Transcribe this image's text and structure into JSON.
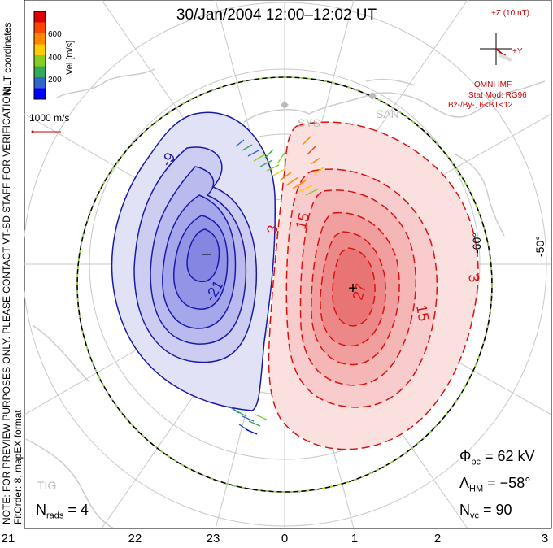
{
  "header": {
    "title": "30/Jan/2004 12:00–12:02 UT"
  },
  "side_text": {
    "line1": "NOTE: FOR PREVIEW PURPOSES ONLY. PLEASE CONTACT VT-SD STAFF FOR VERIFICATION.",
    "line2": "FitOrder: 8, mapEX format"
  },
  "colorbar": {
    "coord_label": "MLT coordinates",
    "vel_label": "Vel [m/s]",
    "ticks": [
      "600",
      "400",
      "200"
    ],
    "colors": [
      "#0000ff",
      "#3366cc",
      "#33aa55",
      "#88cc22",
      "#ffcc00",
      "#ff8800",
      "#ff4400",
      "#dd0000"
    ]
  },
  "scale": {
    "label": "1000 m/s"
  },
  "imf": {
    "axis_label": "+Z (10 nT)",
    "y_label": "+Y",
    "source": "OMNI IMF",
    "model": "Stat Mod: RG96",
    "condition": "Bz-/By-, 6<BT<12"
  },
  "map": {
    "lat_labels": [
      "-60°",
      "-50°"
    ],
    "site_labels": [
      "SYS",
      "SAN",
      "TIG"
    ],
    "contour_labels": {
      "negative": [
        "-9",
        "-21"
      ],
      "positive": [
        "3",
        "15",
        "27",
        "15",
        "3"
      ]
    },
    "min_marker": "–",
    "max_marker": "+"
  },
  "stats": {
    "phi_symbol": "Φ",
    "phi_sub": "pc",
    "phi_value": "= 62 kV",
    "lambda_symbol": "Λ",
    "lambda_sub": "HM",
    "lambda_value": "= −58°",
    "n_symbol": "N",
    "nvc_sub": "vc",
    "nvc_value": "= 90",
    "nrads_sub": "rads",
    "nrads_value": "= 4"
  },
  "x_axis": {
    "ticks": [
      "21",
      "22",
      "23",
      "0",
      "1",
      "2",
      "3"
    ]
  },
  "colors": {
    "negative_line": "#1a1aaa",
    "positive_line": "#dd1111",
    "imf_text": "#cc0000",
    "coast": "#cccccc"
  }
}
